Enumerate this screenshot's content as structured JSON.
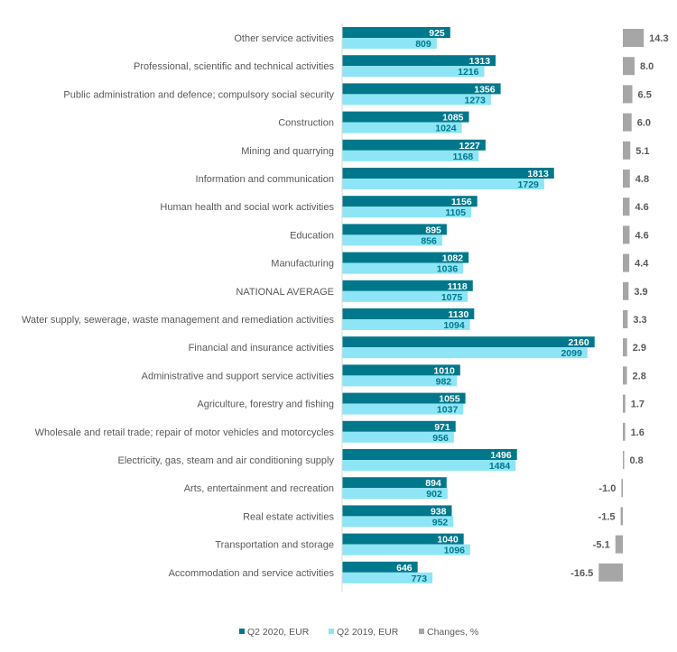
{
  "chart_data": {
    "type": "bar",
    "orientation": "horizontal",
    "title": "",
    "categories": [
      "Other service activities",
      "Professional, scientific and technical activities",
      "Public administration and defence; compulsory social security",
      "Construction",
      "Mining and quarrying",
      "Information and communication",
      "Human health and social work activities",
      "Education",
      "Manufacturing",
      "NATIONAL AVERAGE",
      "Water supply, sewerage, waste management and remediation activities",
      "Financial and insurance activities",
      "Administrative and support service activities",
      "Agriculture, forestry and fishing",
      "Wholesale and retail trade; repair of motor vehicles and motorcycles",
      "Electricity, gas, steam and air conditioning supply",
      "Arts, entertainment and recreation",
      "Real estate activities",
      "Transportation and storage",
      "Accommodation and service activities"
    ],
    "series": [
      {
        "name": "Q2 2020, EUR",
        "color": "#00788C",
        "values": [
          925,
          1313,
          1356,
          1085,
          1227,
          1813,
          1156,
          895,
          1082,
          1118,
          1130,
          2160,
          1010,
          1055,
          971,
          1496,
          894,
          938,
          1040,
          646
        ]
      },
      {
        "name": "Q2 2019, EUR",
        "color": "#8EE5F5",
        "values": [
          809,
          1216,
          1273,
          1024,
          1168,
          1729,
          1105,
          856,
          1036,
          1075,
          1094,
          2099,
          982,
          1037,
          956,
          1484,
          902,
          952,
          1096,
          773
        ]
      },
      {
        "name": "Changes, %",
        "color": "#A6A6A6",
        "values": [
          14.3,
          8.0,
          6.5,
          6.0,
          5.1,
          4.8,
          4.6,
          4.6,
          4.4,
          3.9,
          3.3,
          2.9,
          2.8,
          1.7,
          1.6,
          0.8,
          -1.0,
          -1.5,
          -5.1,
          -16.5
        ]
      }
    ],
    "change_labels": [
      "14.3",
      "8.0",
      "6.5",
      "6.0",
      "5.1",
      "4.8",
      "4.6",
      "4.6",
      "4.4",
      "3.9",
      "3.3",
      "2.9",
      "2.8",
      "1.7",
      "1.6",
      "0.8",
      "-1.0",
      "-1.5",
      "-5.1",
      "-16.5"
    ],
    "legend": [
      "Q2 2020, EUR",
      "Q2 2019, EUR",
      "Changes, %"
    ],
    "legend_position": "bottom",
    "grid": false
  }
}
